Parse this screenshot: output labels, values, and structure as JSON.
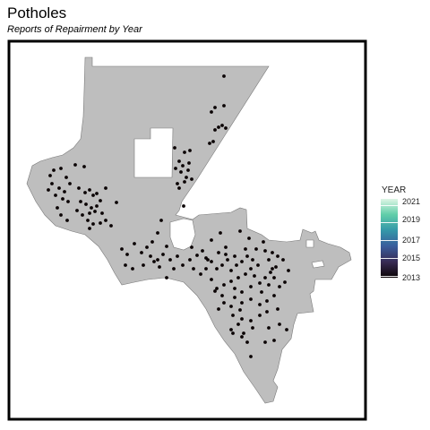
{
  "title": "Potholes",
  "subtitle": "Reports of Repairment by Year",
  "map": {
    "region_fill": "#bebebe",
    "region_stroke": "#7a7a7a",
    "frame_color": "#000000",
    "point_color": "#0b0405"
  },
  "legend": {
    "title": "YEAR",
    "ticks": [
      "2021",
      "2019",
      "2017",
      "2015",
      "2013"
    ],
    "colors": [
      "#def5e5",
      "#60cea9",
      "#3497a9",
      "#395d9c",
      "#382a54",
      "#0b0405"
    ]
  }
}
